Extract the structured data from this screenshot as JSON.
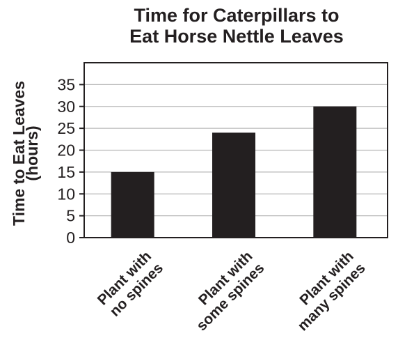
{
  "chart_data": {
    "type": "bar",
    "title": [
      "Time for Caterpillars to",
      "Eat Horse Nettle Leaves"
    ],
    "ylabel": [
      "Time to Eat Leaves",
      "(hours)"
    ],
    "xlabel": "",
    "categories": [
      [
        "Plant with",
        "no spines"
      ],
      [
        "Plant with",
        "some spines"
      ],
      [
        "Plant with",
        "many spines"
      ]
    ],
    "values": [
      15,
      24,
      30
    ],
    "ylim": [
      0,
      40
    ],
    "yticks": [
      0,
      5,
      10,
      15,
      20,
      25,
      30,
      35
    ],
    "grid": true,
    "bar_color": "#231f20",
    "grid_color": "#b8b8b8"
  }
}
